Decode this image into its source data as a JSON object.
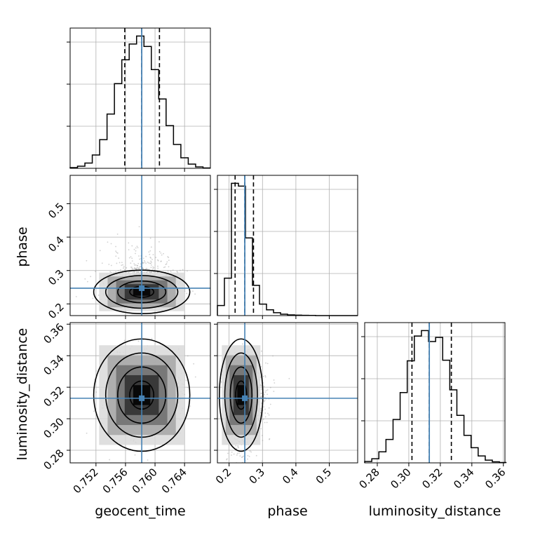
{
  "chart_data": {
    "type": "corner",
    "parameters": [
      "geocent_time",
      "phase",
      "luminosity_distance"
    ],
    "truths": {
      "geocent_time": 0.7582,
      "phase": 0.247,
      "luminosity_distance": 0.313
    },
    "axes": {
      "geocent_time": {
        "range": [
          0.7485,
          0.7675
        ],
        "ticks": [
          0.752,
          0.756,
          0.76,
          0.764
        ],
        "tick_labels": [
          "0.752",
          "0.756",
          "0.760",
          "0.764"
        ]
      },
      "phase": {
        "range": [
          0.165,
          0.585
        ],
        "ticks": [
          0.2,
          0.3,
          0.4,
          0.5
        ],
        "tick_labels": [
          "0.2",
          "0.3",
          "0.4",
          "0.5"
        ]
      },
      "luminosity_distance": {
        "range": [
          0.272,
          0.361
        ],
        "ticks": [
          0.28,
          0.3,
          0.32,
          0.34,
          0.36
        ],
        "tick_labels": [
          "0.28",
          "0.30",
          "0.32",
          "0.34",
          "0.36"
        ]
      }
    },
    "marginals": {
      "geocent_time": {
        "bin_edges": [
          0.7485,
          0.7495,
          0.7505,
          0.7515,
          0.7525,
          0.7535,
          0.7545,
          0.7555,
          0.7565,
          0.7575,
          0.7585,
          0.7595,
          0.7605,
          0.7615,
          0.7625,
          0.7635,
          0.7645,
          0.7655,
          0.7665,
          0.7675
        ],
        "counts": [
          0.2,
          0.6,
          1.5,
          3.8,
          8.2,
          15.5,
          24.2,
          31.0,
          35.5,
          37.8,
          34.8,
          28.2,
          19.8,
          12.2,
          6.8,
          3.0,
          1.2,
          0.4,
          0.1
        ],
        "quantiles": [
          0.7559,
          0.7582,
          0.7606
        ]
      },
      "phase": {
        "bin_edges": [
          0.165,
          0.186,
          0.207,
          0.228,
          0.249,
          0.27,
          0.291,
          0.312,
          0.333,
          0.354,
          0.375,
          0.396,
          0.417,
          0.438,
          0.459,
          0.48,
          0.501,
          0.522,
          0.543,
          0.564,
          0.585
        ],
        "counts": [
          0.7,
          2.6,
          9.2,
          9.0,
          5.4,
          2.1,
          0.8,
          0.4,
          0.2,
          0.1,
          0.05,
          0.03,
          0.02,
          0.01,
          0.0,
          0.0,
          0.0,
          0.0,
          0.0,
          0.0
        ],
        "quantiles": [
          0.218,
          0.247,
          0.273
        ]
      },
      "luminosity_distance": {
        "bin_edges": [
          0.272,
          0.2765,
          0.281,
          0.2855,
          0.29,
          0.2945,
          0.299,
          0.3035,
          0.308,
          0.3125,
          0.317,
          0.3215,
          0.326,
          0.3305,
          0.335,
          0.3395,
          0.344,
          0.3485,
          0.353,
          0.3575,
          0.362
        ],
        "counts": [
          0.2,
          0.6,
          1.6,
          3.4,
          6.3,
          10.2,
          14.8,
          18.4,
          19.2,
          17.6,
          18.2,
          14.9,
          10.6,
          6.9,
          4.0,
          2.2,
          1.0,
          0.4,
          0.15,
          0.05
        ],
        "quantiles": [
          0.302,
          0.313,
          0.327
        ]
      }
    },
    "joint_2d": [
      {
        "x": "geocent_time",
        "y": "phase",
        "center": [
          0.7582,
          0.236
        ],
        "sigma": [
          0.0021,
          0.021
        ]
      },
      {
        "x": "geocent_time",
        "y": "luminosity_distance",
        "center": [
          0.7582,
          0.315
        ],
        "sigma": [
          0.0021,
          0.0115
        ]
      },
      {
        "x": "phase",
        "y": "luminosity_distance",
        "center": [
          0.236,
          0.315
        ],
        "sigma": [
          0.021,
          0.0115
        ]
      }
    ],
    "contour_levels": [
      "0.5",
      "1.0",
      "1.5",
      "2.0"
    ],
    "grid": true,
    "colors": {
      "truth": "#4682b4",
      "hist": "#000000",
      "quantile": "#000000",
      "grid": "#b0b0b0",
      "scatter": "#9a9a9a"
    }
  }
}
